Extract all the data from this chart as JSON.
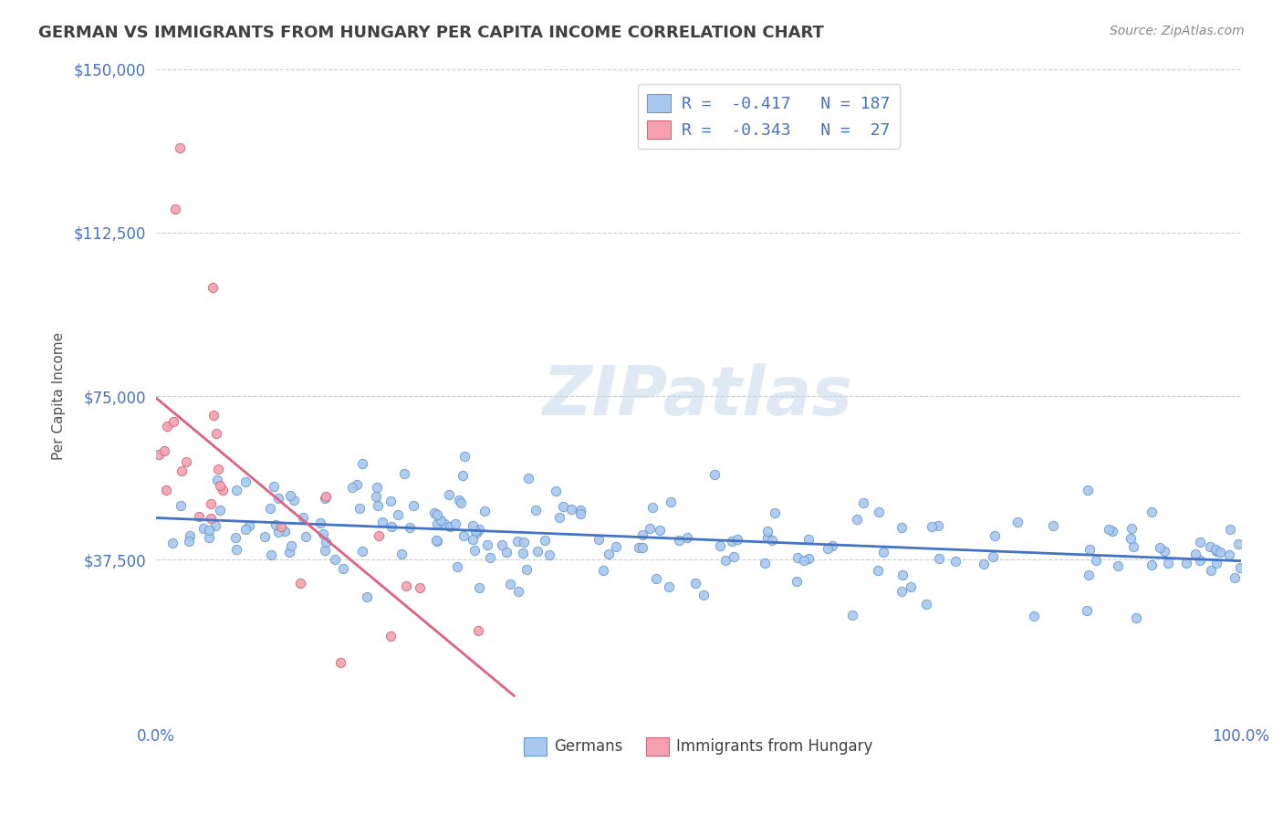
{
  "title": "GERMAN VS IMMIGRANTS FROM HUNGARY PER CAPITA INCOME CORRELATION CHART",
  "source": "Source: ZipAtlas.com",
  "ylabel": "Per Capita Income",
  "xlim": [
    0,
    1.0
  ],
  "ylim": [
    0,
    150000
  ],
  "yticks": [
    37500,
    75000,
    112500,
    150000
  ],
  "ytick_labels": [
    "$37,500",
    "$75,000",
    "$112,500",
    "$150,000"
  ],
  "xtick_labels": [
    "0.0%",
    "100.0%"
  ],
  "legend_entries": [
    {
      "label": "R =  -0.417   N = 187",
      "color": "#a8c8f0"
    },
    {
      "label": "R =  -0.343   N =  27",
      "color": "#f5a0b0"
    }
  ],
  "legend_bottom_labels": [
    "Germans",
    "Immigrants from Hungary"
  ],
  "background_color": "#ffffff",
  "title_color": "#404040",
  "axis_color": "#4472c4",
  "german_color": "#a8c8f0",
  "german_edge_color": "#6699cc",
  "hungary_color": "#f5a0b0",
  "hungary_edge_color": "#cc6677",
  "german_line_color": "#4472c4",
  "hungary_line_color": "#e06080",
  "grid_color": "#cccccc",
  "N_german": 187,
  "N_hungary": 27
}
